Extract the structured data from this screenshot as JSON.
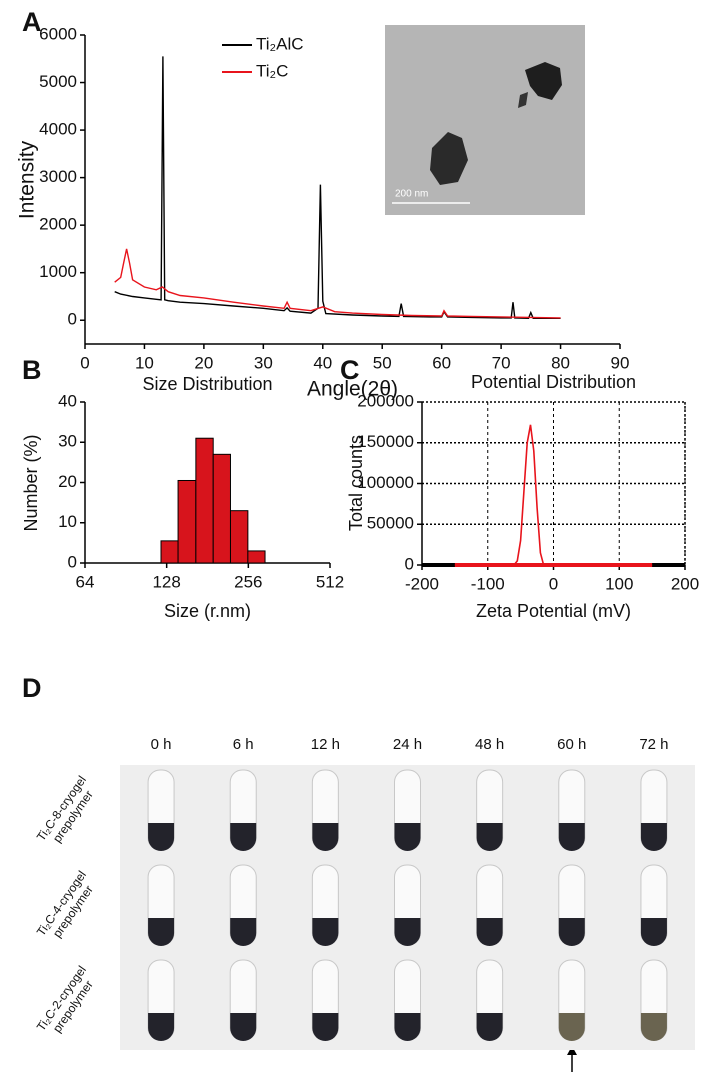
{
  "panel_labels": [
    "A",
    "B",
    "C",
    "D"
  ],
  "chart_data": [
    {
      "type": "line",
      "xlabel": "Angle(2θ)",
      "ylabel": "Intensity",
      "xlim": [
        0,
        90
      ],
      "xticks": [
        0,
        10,
        20,
        30,
        40,
        50,
        60,
        70,
        80,
        90
      ],
      "ylim": [
        -500,
        6000
      ],
      "yticks": [
        0,
        1000,
        2000,
        3000,
        4000,
        5000,
        6000
      ],
      "legend": "top",
      "inset_scale": "200 nm",
      "series": [
        {
          "name": "Ti₂AlC",
          "color": "#000000",
          "x": [
            5,
            6,
            8,
            10,
            12,
            12.8,
            13.1,
            13.4,
            14,
            16,
            20,
            25,
            30,
            33.5,
            34,
            34.5,
            38,
            39.2,
            39.6,
            40,
            40.5,
            45,
            50,
            52.8,
            53.2,
            53.6,
            58,
            60,
            60.4,
            61,
            65,
            70,
            71.7,
            72,
            72.3,
            74.6,
            75,
            75.4,
            78,
            80
          ],
          "values": [
            600,
            550,
            500,
            470,
            440,
            430,
            5550,
            430,
            410,
            380,
            350,
            300,
            250,
            200,
            260,
            190,
            150,
            250,
            2850,
            400,
            140,
            110,
            90,
            80,
            350,
            80,
            70,
            70,
            180,
            70,
            60,
            50,
            50,
            380,
            50,
            40,
            160,
            40,
            40,
            40
          ]
        },
        {
          "name": "Ti₂C",
          "color": "#e8141c",
          "x": [
            5,
            6,
            6.5,
            7,
            7.5,
            8,
            10,
            12,
            13,
            14,
            16,
            20,
            25,
            30,
            33.5,
            34,
            34.5,
            38,
            40,
            42,
            45,
            50,
            55,
            60,
            60.4,
            61,
            65,
            70,
            75,
            80
          ],
          "values": [
            800,
            900,
            1200,
            1500,
            1200,
            850,
            700,
            640,
            700,
            600,
            520,
            470,
            380,
            300,
            250,
            380,
            250,
            200,
            280,
            180,
            150,
            120,
            100,
            90,
            200,
            90,
            80,
            70,
            60,
            50
          ]
        }
      ]
    },
    {
      "type": "histogram",
      "title": "Size Distribution",
      "xlabel": "Size (r.nm)",
      "ylabel": "Number (%)",
      "xscale": "log",
      "xlim": [
        64,
        512
      ],
      "xticks": [
        64,
        128,
        256,
        512
      ],
      "ylim": [
        0,
        40
      ],
      "yticks": [
        0,
        10,
        20,
        30,
        40
      ],
      "color": "#d7141c",
      "bins": [
        122,
        141,
        164,
        190,
        220,
        255,
        295
      ],
      "counts": [
        5.5,
        20.5,
        31,
        27,
        13,
        3
      ]
    },
    {
      "type": "line",
      "title": "Potential Distribution",
      "xlabel": "Zeta Potential (mV)",
      "ylabel": "Total counts",
      "xlim": [
        -200,
        200
      ],
      "xticks": [
        -200,
        -100,
        0,
        100,
        200
      ],
      "ylim": [
        0,
        200000
      ],
      "yticks": [
        0,
        50000,
        100000,
        150000,
        200000
      ],
      "grid": true,
      "series": [
        {
          "color": "#e8141c",
          "x": [
            -150,
            -60,
            -55,
            -50,
            -45,
            -40,
            -35,
            -30,
            -25,
            -20,
            -15,
            150
          ],
          "values": [
            0,
            0,
            5000,
            30000,
            90000,
            150000,
            172000,
            140000,
            70000,
            15000,
            0,
            0
          ]
        }
      ]
    }
  ],
  "tube_photos": {
    "columns": [
      "0 h",
      "6 h",
      "12 h",
      "24 h",
      "48 h",
      "60 h",
      "72 h"
    ],
    "rows": [
      [
        "Ti₂C-8-cryogel",
        "prepolymer"
      ],
      [
        "Ti₂C-4-cryogel",
        "prepolymer"
      ],
      [
        "Ti₂C-2-cryogel",
        "prepolymer"
      ]
    ]
  }
}
